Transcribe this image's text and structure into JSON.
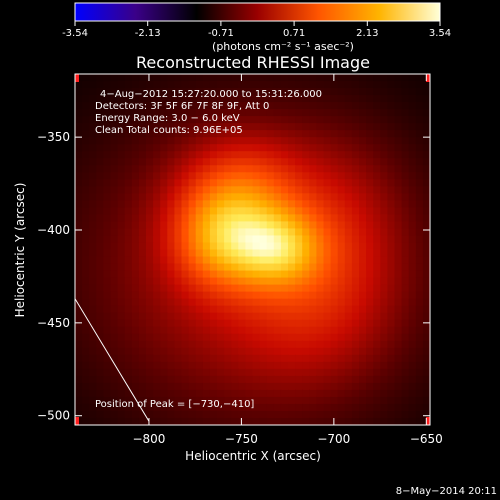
{
  "colorbar": {
    "ticks": [
      "-3.54",
      "-2.13",
      "-0.71",
      "0.71",
      "2.13",
      "3.54"
    ],
    "tick_values": [
      -3.54,
      -2.13,
      -0.71,
      0.71,
      2.13,
      3.54
    ],
    "range": [
      -3.54,
      3.54
    ],
    "units_label": "(photons cm⁻² s⁻¹ asec⁻²)",
    "colors": [
      "#0000ff",
      "#3a0088",
      "#000000",
      "#9a0000",
      "#ff5500",
      "#ffb400",
      "#ffffd8"
    ]
  },
  "chart_data": {
    "type": "heatmap",
    "title": "Reconstructed RHESSI Image",
    "xlabel": "Heliocentric X (arcsec)",
    "ylabel": "Heliocentric Y (arcsec)",
    "xlim": [
      -840,
      -648
    ],
    "ylim": [
      -505,
      -316
    ],
    "x_ticks": [
      -800,
      -750,
      -700,
      -650
    ],
    "y_ticks": [
      -350,
      -400,
      -450,
      -500
    ],
    "x_tick_labels": [
      "−800",
      "−750",
      "−700",
      "−650"
    ],
    "y_tick_labels": [
      "−350",
      "−400",
      "−450",
      "−500"
    ],
    "annotations": [
      "4−Aug−2012 15:27:20.000 to 15:31:26.000",
      "Detectors: 3F 5F 6F 7F 8F 9F, Att 0",
      "Energy Range: 3.0 − 6.0 keV",
      "Clean    Total counts: 9.96E+05"
    ],
    "peak_label": "Position of Peak = [−730,−410]",
    "peak": [
      -730,
      -410
    ],
    "limb_line": [
      [
        -840,
        -437
      ],
      [
        -800,
        -503
      ]
    ],
    "sources": [
      {
        "x": -760,
        "y": -405,
        "amp": 1.0,
        "sx": 18,
        "sy": 18
      },
      {
        "x": -730,
        "y": -410,
        "amp": 1.0,
        "sx": 16,
        "sy": 14
      },
      {
        "x": -750,
        "y": -380,
        "amp": 0.7,
        "sx": 22,
        "sy": 20
      },
      {
        "x": -745,
        "y": -420,
        "amp": 0.6,
        "sx": 60,
        "sy": 55
      },
      {
        "x": -712,
        "y": -440,
        "amp": 0.35,
        "sx": 30,
        "sy": 30
      },
      {
        "x": -700,
        "y": -395,
        "amp": 0.3,
        "sx": 25,
        "sy": 30
      }
    ]
  },
  "footer": {
    "date": "8−May−2014 20:11"
  }
}
